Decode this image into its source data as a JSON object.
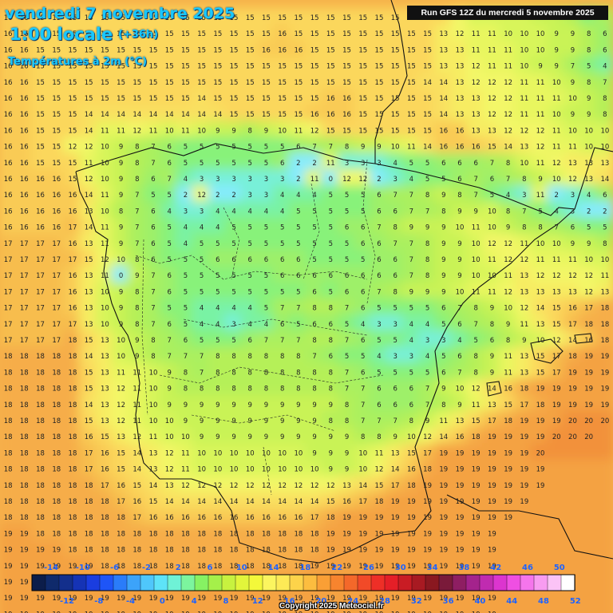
{
  "header": {
    "date_line": "vendredi 7 novembre 2025",
    "hour_line": "1:00 locale",
    "offset": "(+36h)",
    "parameter": "Températures à 2m (°C)"
  },
  "run_info": "Run GFS 12Z du mercredi 5 novembre 2025",
  "copyright": "Copyright 2025 Meteociel.fr",
  "legend": {
    "top_labels": [
      "-14",
      "-10",
      "-6",
      "-2",
      "2",
      "6",
      "10",
      "14",
      "18",
      "22",
      "26",
      "30",
      "34",
      "38",
      "42",
      "46",
      "50"
    ],
    "bottom_labels": [
      "-12",
      "-8",
      "-4",
      "0",
      "4",
      "8",
      "12",
      "16",
      "20",
      "24",
      "28",
      "32",
      "36",
      "40",
      "44",
      "48",
      "52"
    ],
    "colors": [
      "#0c1d4a",
      "#0f2a6b",
      "#132f8c",
      "#1533b5",
      "#1a3de0",
      "#1e55f7",
      "#2a7cf9",
      "#3ca3fa",
      "#4fc7fb",
      "#5ee3f8",
      "#6ff2d6",
      "#7cf59e",
      "#86f263",
      "#a5f04a",
      "#c7f23f",
      "#e2f53b",
      "#f3f83a",
      "#fbf55f",
      "#fdea56",
      "#fdd34a",
      "#fcbd3f",
      "#fa9f35",
      "#f7842e",
      "#f4682a",
      "#f14a28",
      "#ee2f27",
      "#e51f27",
      "#c91c24",
      "#a81a22",
      "#8a1820",
      "#7a1a3a",
      "#8e1e62",
      "#a4238c",
      "#c02bb0",
      "#dc35cf",
      "#ef4fe2",
      "#f575ec",
      "#f89cf1",
      "#fbc3f6",
      "#ffffff"
    ]
  },
  "map": {
    "color_scale": {
      "2": "#86ebff",
      "3": "#78f0d8",
      "4": "#79f2a4",
      "5": "#88f27a",
      "6": "#9ef069",
      "7": "#aaf05e",
      "8": "#b5f058",
      "9": "#c9f357",
      "10": "#d8f55a",
      "11": "#e8f65e",
      "12": "#f3f767",
      "13": "#f7ec62",
      "14": "#f9e060",
      "15": "#fbd75c",
      "16": "#f9cb55",
      "17": "#f7bd4e",
      "18": "#f6ad48",
      "19": "#f4a242",
      "20": "#f2913b"
    },
    "grid_rows": [
      "1616151515151515151515151515151515151515151515151515151512101010109985777",
      "1616151515151515151515151515151515161515151515151515151312111110101099868757",
      "1616151515151515151515151515151516161615151515151515151313111111101099867757",
      "1616151515151515151515151515151515151515151515151515151313121111109975457",
      "16161515151515151515151515151515151515151515151515151414131212121111109874469",
      "161615151515151515151515141515151515151516161515151515141313121211111110987609",
      "16161515151414141414141414141515151515161616151515151514131312121111109988759",
      "161615151514111112111011109989101112151515151515151616131312121211101010981011914",
      "1616151512121098765555555677899101114161616151413121111101011111110101110121516",
      "16161515151110987655555562211333455666781011121313131314151515",
      "16161616151210986743333332110121223455676789101213141414151515",
      "1616161616141197552122233444555677898754311234687101114151516",
      "1616161616131087643344444555556677899108754322354681012141515",
      "16161616171411976544455555556678999101110988765566791112141516",
      "171717171613119765455555555556677899101212111010998891011121415",
      "1717171717151210865556666665555667899101112121111111010111314151617",
      "1717171716131109765555556666666678991010111312121212111212131415161717",
      "17171717161310987655555555656678999101111121313131312131314151617171818",
      "1717171716131098755444457788765555678910121415161718181818181818",
      "1717171717131098765443446566543344567891113151718181818181818",
      "17171717181513109876555677788765543345689101214161819191918181818",
      "181818181814131098777888888765543345689111315171819191919191819",
      "181818181815131111109878888888876555567891113151719191919191919",
      "18181818181513121110988888888887766679101214161819191919191919",
      "1818181818141312111099999999999876667891113151718191919192019",
      "18181818181513121110109999999998877789111315171819191920202020",
      "1818181818161513121110109999999999889101214161819191919202020",
      "18181818181716151413121110101010101010999101113151719191919191920",
      "181818181817161514131211101010101010101099101214161819191919191919",
      "18181818181817161514131212121212121212121213141517181919191919191919",
      "181818181818181716151414141414141414141415161718191919191919191919",
      "1818181818181818171616161616161616161617181919191919191919191919",
      "19191818181818181818181818181818181818181919191919191919191919",
      "19191919181818181818181818181818181818181919191919191919191919",
      "19191919191918181818181818181818181818191919191919191919191919",
      "19191919191919191919191919191919191919191919191919191919191919",
      "19191919191919191919191919191919191919191919191919191919191919",
      "19191919191919191919191919191919191919191919191919191919191919"
    ]
  }
}
